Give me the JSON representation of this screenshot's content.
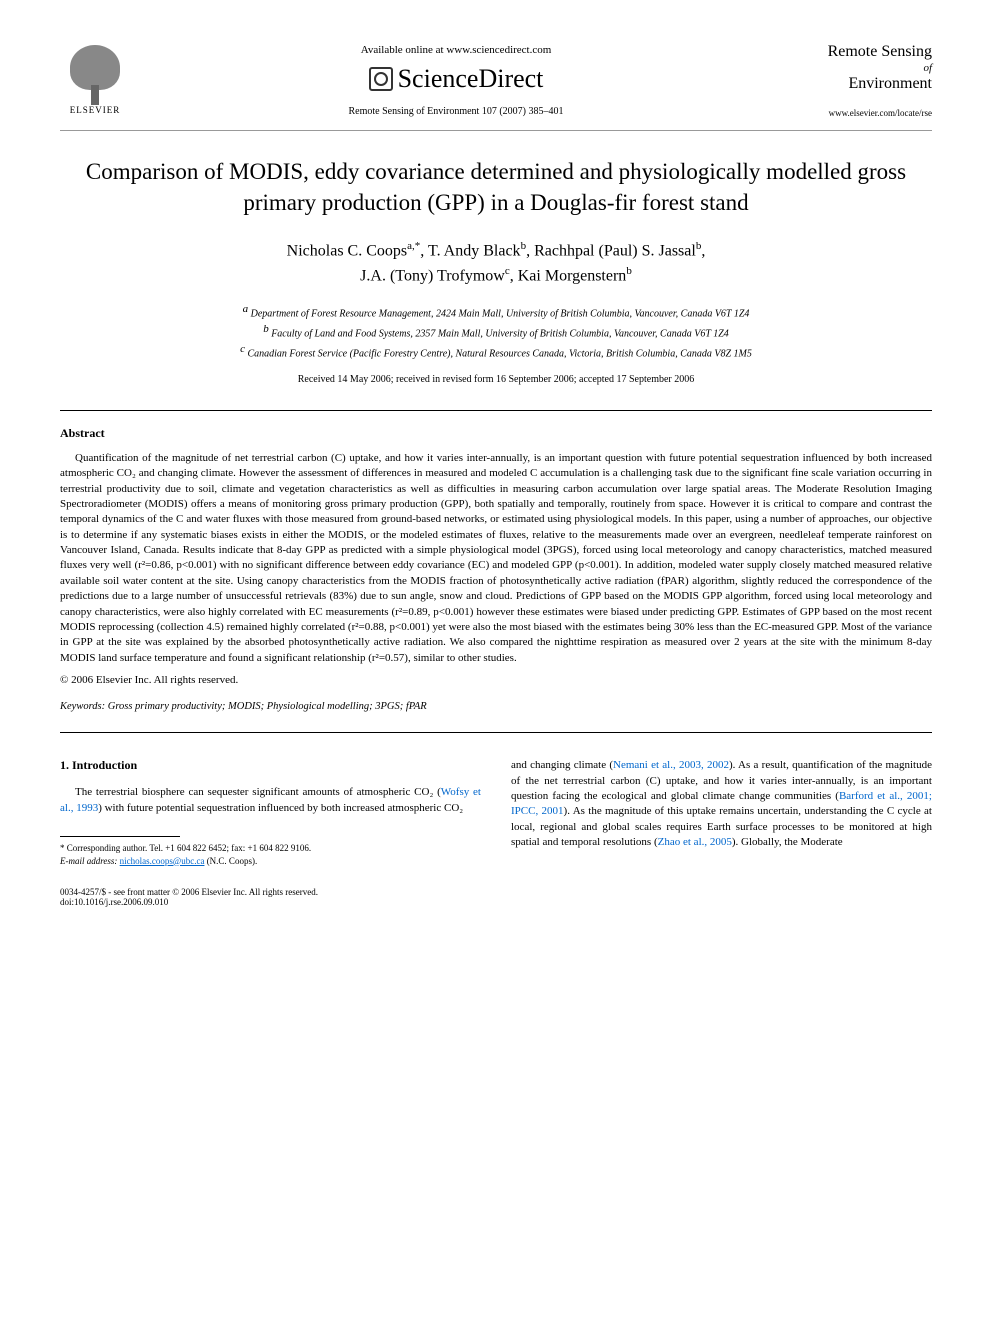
{
  "header": {
    "available_text": "Available online at www.sciencedirect.com",
    "publisher_logo_text": "ELSEVIER",
    "platform_name": "ScienceDirect",
    "journal_ref": "Remote Sensing of Environment 107 (2007) 385–401",
    "journal_name_line1": "Remote Sensing",
    "journal_of": "of",
    "journal_name_line2": "Environment",
    "journal_url": "www.elsevier.com/locate/rse"
  },
  "article": {
    "title": "Comparison of MODIS, eddy covariance determined and physiologically modelled gross primary production (GPP) in a Douglas-fir forest stand",
    "authors_line1": "Nicholas C. Coops",
    "authors_sup1": "a,*",
    "authors_sep1": ", T. Andy Black",
    "authors_sup2": "b",
    "authors_sep2": ", Rachhpal (Paul) S. Jassal",
    "authors_sup3": "b",
    "authors_sep3": ",",
    "authors_line2": "J.A. (Tony) Trofymow",
    "authors_sup4": "c",
    "authors_sep4": ", Kai Morgenstern",
    "authors_sup5": "b",
    "affiliation_a": "Department of Forest Resource Management, 2424 Main Mall, University of British Columbia, Vancouver, Canada V6T 1Z4",
    "affiliation_b": "Faculty of Land and Food Systems, 2357 Main Mall, University of British Columbia, Vancouver, Canada V6T 1Z4",
    "affiliation_c": "Canadian Forest Service (Pacific Forestry Centre), Natural Resources Canada, Victoria, British Columbia, Canada V8Z 1M5",
    "dates": "Received 14 May 2006; received in revised form 16 September 2006; accepted 17 September 2006"
  },
  "abstract": {
    "heading": "Abstract",
    "text": "Quantification of the magnitude of net terrestrial carbon (C) uptake, and how it varies inter-annually, is an important question with future potential sequestration influenced by both increased atmospheric CO₂ and changing climate. However the assessment of differences in measured and modeled C accumulation is a challenging task due to the significant fine scale variation occurring in terrestrial productivity due to soil, climate and vegetation characteristics as well as difficulties in measuring carbon accumulation over large spatial areas. The Moderate Resolution Imaging Spectroradiometer (MODIS) offers a means of monitoring gross primary production (GPP), both spatially and temporally, routinely from space. However it is critical to compare and contrast the temporal dynamics of the C and water fluxes with those measured from ground-based networks, or estimated using physiological models. In this paper, using a number of approaches, our objective is to determine if any systematic biases exists in either the MODIS, or the modeled estimates of fluxes, relative to the measurements made over an evergreen, needleleaf temperate rainforest on Vancouver Island, Canada. Results indicate that 8-day GPP as predicted with a simple physiological model (3PGS), forced using local meteorology and canopy characteristics, matched measured fluxes very well (r²=0.86, p<0.001) with no significant difference between eddy covariance (EC) and modeled GPP (p<0.001). In addition, modeled water supply closely matched measured relative available soil water content at the site. Using canopy characteristics from the MODIS fraction of photosynthetically active radiation (fPAR) algorithm, slightly reduced the correspondence of the predictions due to a large number of unsuccessful retrievals (83%) due to sun angle, snow and cloud. Predictions of GPP based on the MODIS GPP algorithm, forced using local meteorology and canopy characteristics, were also highly correlated with EC measurements (r²=0.89, p<0.001) however these estimates were biased under predicting GPP. Estimates of GPP based on the most recent MODIS reprocessing (collection 4.5) remained highly correlated (r²=0.88, p<0.001) yet were also the most biased with the estimates being 30% less than the EC-measured GPP. Most of the variance in GPP at the site was explained by the absorbed photosynthetically active radiation. We also compared the nighttime respiration as measured over 2 years at the site with the minimum 8-day MODIS land surface temperature and found a significant relationship (r²=0.57), similar to other studies.",
    "copyright": "© 2006 Elsevier Inc. All rights reserved."
  },
  "keywords": {
    "label": "Keywords:",
    "text": "Gross primary productivity; MODIS; Physiological modelling; 3PGS; fPAR"
  },
  "introduction": {
    "heading": "1. Introduction",
    "col1_text_pre": "The terrestrial biosphere can sequester significant amounts of atmospheric CO₂ (",
    "col1_cite1": "Wofsy et al., 1993",
    "col1_text_post": ") with future potential sequestration influenced by both increased atmospheric CO₂",
    "col2_text_pre": "and changing climate (",
    "col2_cite1": "Nemani et al., 2003, 2002",
    "col2_text_mid1": "). As a result, quantification of the magnitude of the net terrestrial carbon (C) uptake, and how it varies inter-annually, is an important question facing the ecological and global climate change communities (",
    "col2_cite2": "Barford et al., 2001; IPCC, 2001",
    "col2_text_mid2": "). As the magnitude of this uptake remains uncertain, understanding the C cycle at local, regional and global scales requires Earth surface processes to be monitored at high spatial and temporal resolutions (",
    "col2_cite3": "Zhao et al., 2005",
    "col2_text_end": "). Globally, the Moderate"
  },
  "footnote": {
    "corresponding": "* Corresponding author. Tel. +1 604 822 6452; fax: +1 604 822 9106.",
    "email_label": "E-mail address:",
    "email": "nicholas.coops@ubc.ca",
    "email_name": "(N.C. Coops)."
  },
  "footer": {
    "issn": "0034-4257/$ - see front matter © 2006 Elsevier Inc. All rights reserved.",
    "doi": "doi:10.1016/j.rse.2006.09.010"
  }
}
